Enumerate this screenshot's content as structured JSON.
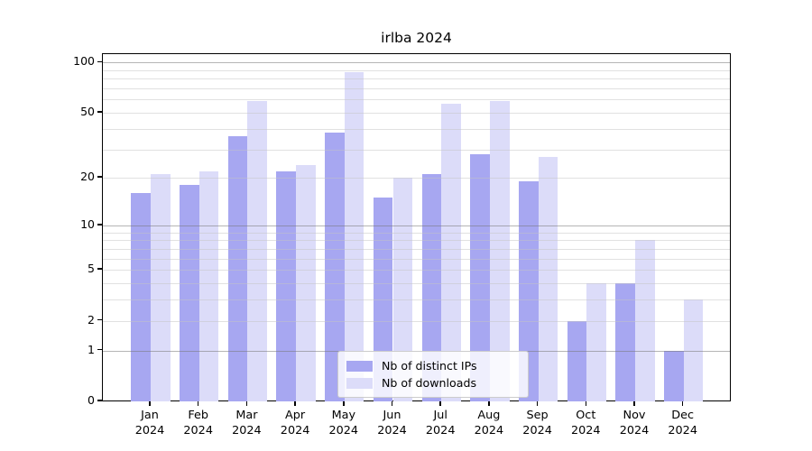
{
  "chart_data": {
    "type": "bar",
    "title": "irlba 2024",
    "categories": [
      "Jan",
      "Feb",
      "Mar",
      "Apr",
      "May",
      "Jun",
      "Jul",
      "Aug",
      "Sep",
      "Oct",
      "Nov",
      "Dec"
    ],
    "category_year": "2024",
    "series": [
      {
        "name": "Nb of distinct IPs",
        "color": "#a7a7f1",
        "values": [
          16,
          18,
          36,
          22,
          38,
          15,
          21,
          28,
          19,
          2,
          4,
          1
        ]
      },
      {
        "name": "Nb of downloads",
        "color": "#dcdcf9",
        "values": [
          21,
          22,
          59,
          24,
          88,
          20,
          57,
          59,
          27,
          4,
          8,
          3
        ]
      }
    ],
    "yscale": "log1p",
    "ylim": [
      0,
      100
    ],
    "ytick_labels": [
      "0",
      "1",
      "2",
      "5",
      "10",
      "20",
      "50",
      "100"
    ],
    "ytick_values": [
      0,
      1,
      2,
      5,
      10,
      20,
      50,
      100
    ],
    "major_gridlines": [
      1,
      10,
      100
    ],
    "minor_gridlines": [
      2,
      3,
      4,
      5,
      6,
      7,
      8,
      9,
      20,
      30,
      40,
      50,
      60,
      70,
      80,
      90
    ],
    "grid": true,
    "legend_position": "lower center",
    "legend_entries": [
      "Nb of distinct IPs",
      "Nb of downloads"
    ]
  }
}
